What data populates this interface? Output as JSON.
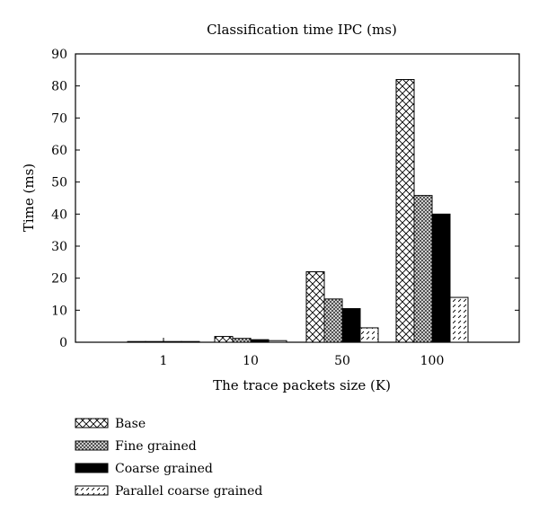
{
  "chart_data": {
    "type": "bar",
    "title": "Classification time IPC (ms)",
    "xlabel": "The trace packets size (K)",
    "ylabel": "Time (ms)",
    "categories": [
      "1",
      "10",
      "50",
      "100"
    ],
    "ylim": [
      0,
      90
    ],
    "yticks": [
      0,
      10,
      20,
      30,
      40,
      50,
      60,
      70,
      80,
      90
    ],
    "grid": false,
    "legend_position": "bottom-left",
    "series": [
      {
        "name": "Base",
        "values": [
          0.2,
          1.8,
          22,
          82
        ],
        "pattern": "crosshatch"
      },
      {
        "name": "Fine grained",
        "values": [
          0.1,
          1.2,
          13.5,
          45.8
        ],
        "pattern": "dense-checker"
      },
      {
        "name": "Coarse grained",
        "values": [
          0.1,
          0.8,
          10.5,
          40
        ],
        "pattern": "solid"
      },
      {
        "name": "Parallel coarse grained",
        "values": [
          0.05,
          0.5,
          4.5,
          14
        ],
        "pattern": "dashed-diagonal"
      }
    ]
  }
}
